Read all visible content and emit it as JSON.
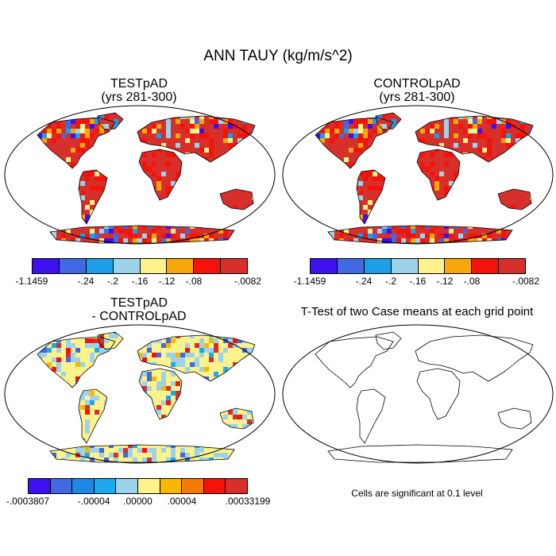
{
  "title": "ANN TAUY (kg/m/s^2)",
  "panels": {
    "test": {
      "title": "TESTpAD",
      "subtitle": "(yrs 281-300)"
    },
    "control": {
      "title": "CONTROLpAD",
      "subtitle": "(yrs 281-300)"
    },
    "diff": {
      "title": "TESTpAD",
      "subtitle": "- CONTROLpAD"
    },
    "ttest": {
      "title": "T-Test of two Case means at each grid point",
      "note": "Cells are significant at 0.1 level"
    }
  },
  "colorbar_top": {
    "colors": [
      "#3d10f0",
      "#4169e1",
      "#1e9ee8",
      "#9cd3ea",
      "#fdf28b",
      "#f8a60a",
      "#f4120a",
      "#d7302a"
    ],
    "labels": [
      "-1.1459",
      "-.24",
      "-.2",
      "-.16",
      "-.12",
      "-.08",
      "-.0082"
    ],
    "label_at_boundary": [
      0,
      2,
      3,
      4,
      5,
      6,
      8
    ]
  },
  "colorbar_diff": {
    "colors": [
      "#3d10f0",
      "#4169e1",
      "#1e88e8",
      "#1ea8ee",
      "#9cd3ea",
      "#fdf28b",
      "#f8b800",
      "#f47a0a",
      "#f4120a",
      "#d7302a"
    ],
    "labels": [
      "-.0003807",
      "-.00004",
      ".00000",
      ".00004",
      ".00033199"
    ],
    "label_at_boundary": [
      0,
      3,
      5,
      7,
      10
    ]
  },
  "map_colors": {
    "test": [
      "#d7302a",
      "#f4120a",
      "#f8a60a",
      "#fdf28b",
      "#9cd3ea",
      "#1e9ee8",
      "#4169e1",
      "#3d10f0"
    ],
    "diff": [
      "#fdf28b",
      "#9cd3ea",
      "#f8b800",
      "#4169e1",
      "#f4120a",
      "#1ea8ee",
      "#d7302a"
    ]
  }
}
